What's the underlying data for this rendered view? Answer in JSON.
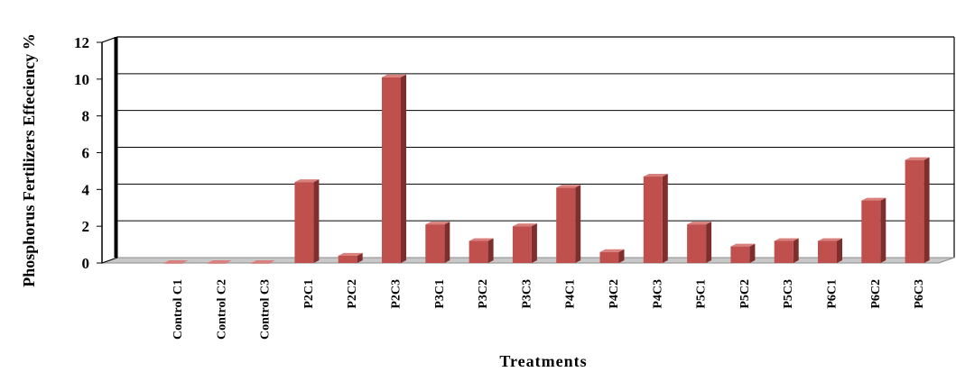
{
  "chart_data": {
    "type": "bar",
    "title": "",
    "xlabel": "Treatments",
    "ylabel": "Phosphorus Fertilizers Effeciency %",
    "ylim": [
      0,
      12
    ],
    "yticks": [
      0,
      2,
      4,
      6,
      8,
      10,
      12
    ],
    "grid": true,
    "legend": "none",
    "bar_color": "#c0504d",
    "categories": [
      "Control C1",
      "Control C2",
      "Control C3",
      "P2C1",
      "P2C2",
      "P2C3",
      "P3C1",
      "P3C2",
      "P3C3",
      "P4C1",
      "P4C2",
      "P4C3",
      "P5C1",
      "P5C2",
      "P5C3",
      "P6C1",
      "P6C2",
      "P6C3"
    ],
    "values": [
      0,
      0,
      0,
      4.4,
      0.4,
      10.1,
      2.1,
      1.2,
      2.0,
      4.1,
      0.6,
      4.7,
      2.1,
      0.9,
      1.2,
      1.2,
      3.4,
      5.6
    ]
  }
}
